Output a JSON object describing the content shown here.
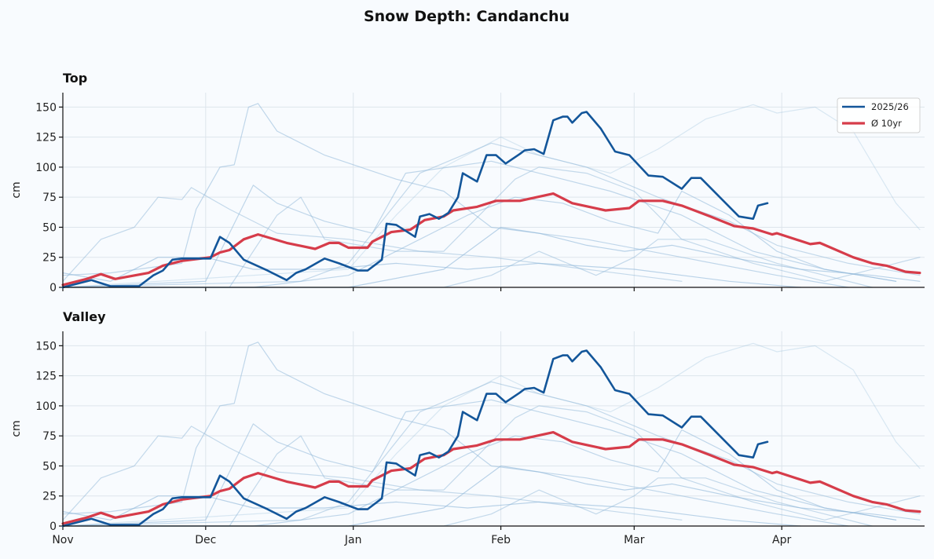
{
  "chart_data": {
    "type": "line",
    "title": "Snow Depth: Candanchu",
    "season_start": "2025-11-01",
    "xlim": [
      "11-01",
      "05-01"
    ],
    "ylim": [
      0,
      162
    ],
    "yticks": [
      0,
      25,
      50,
      75,
      100,
      125,
      150
    ],
    "xticks": [
      {
        "date": "11-01",
        "label": "Nov"
      },
      {
        "date": "12-01",
        "label": "Dec"
      },
      {
        "date": "01-01",
        "label": "Jan"
      },
      {
        "date": "02-01",
        "label": "Feb"
      },
      {
        "date": "03-01",
        "label": "Mar"
      },
      {
        "date": "04-01",
        "label": "Apr"
      }
    ],
    "grid": true,
    "legend_placement": "top-right",
    "panels": [
      {
        "title": "Top",
        "ylabel": "cm"
      },
      {
        "title": "Valley",
        "ylabel": "cm"
      }
    ],
    "series": [
      {
        "name": "2025/26",
        "color": "#13569a",
        "role": "current",
        "points": [
          [
            "11-01",
            0
          ],
          [
            "11-07",
            6
          ],
          [
            "11-11",
            1
          ],
          [
            "11-17",
            1
          ],
          [
            "11-20",
            10
          ],
          [
            "11-22",
            14
          ],
          [
            "11-24",
            23
          ],
          [
            "11-26",
            24
          ],
          [
            "12-02",
            24
          ],
          [
            "12-04",
            42
          ],
          [
            "12-06",
            37
          ],
          [
            "12-09",
            23
          ],
          [
            "12-14",
            14
          ],
          [
            "12-18",
            6
          ],
          [
            "12-20",
            12
          ],
          [
            "12-22",
            15
          ],
          [
            "12-26",
            24
          ],
          [
            "12-29",
            20
          ],
          [
            "12-31",
            17
          ],
          [
            "01-02",
            14
          ],
          [
            "01-04",
            14
          ],
          [
            "01-07",
            23
          ],
          [
            "01-08",
            53
          ],
          [
            "01-10",
            52
          ],
          [
            "01-14",
            42
          ],
          [
            "01-15",
            59
          ],
          [
            "01-17",
            61
          ],
          [
            "01-19",
            57
          ],
          [
            "01-21",
            62
          ],
          [
            "01-23",
            75
          ],
          [
            "01-24",
            95
          ],
          [
            "01-27",
            88
          ],
          [
            "01-29",
            110
          ],
          [
            "01-31",
            110
          ],
          [
            "02-02",
            103
          ],
          [
            "02-05",
            111
          ],
          [
            "02-06",
            114
          ],
          [
            "02-08",
            115
          ],
          [
            "02-10",
            111
          ],
          [
            "02-12",
            139
          ],
          [
            "02-14",
            142
          ],
          [
            "02-15",
            142
          ],
          [
            "02-16",
            137
          ],
          [
            "02-18",
            145
          ],
          [
            "02-19",
            146
          ],
          [
            "02-22",
            132
          ],
          [
            "02-25",
            113
          ],
          [
            "02-28",
            110
          ],
          [
            "03-04",
            93
          ],
          [
            "03-07",
            92
          ],
          [
            "03-11",
            82
          ],
          [
            "03-13",
            91
          ],
          [
            "03-15",
            91
          ],
          [
            "03-23",
            59
          ],
          [
            "03-26",
            57
          ],
          [
            "03-27",
            68
          ],
          [
            "03-29",
            70
          ]
        ]
      },
      {
        "name": "Ø 10yr",
        "color": "#d63c4a",
        "role": "average",
        "points": [
          [
            "11-01",
            2
          ],
          [
            "11-06",
            7
          ],
          [
            "11-09",
            11
          ],
          [
            "11-12",
            7
          ],
          [
            "11-19",
            12
          ],
          [
            "11-22",
            18
          ],
          [
            "11-26",
            22
          ],
          [
            "12-02",
            25
          ],
          [
            "12-04",
            29
          ],
          [
            "12-06",
            31
          ],
          [
            "12-09",
            40
          ],
          [
            "12-12",
            44
          ],
          [
            "12-18",
            37
          ],
          [
            "12-24",
            32
          ],
          [
            "12-27",
            37
          ],
          [
            "12-29",
            37
          ],
          [
            "12-31",
            33
          ],
          [
            "01-04",
            33
          ],
          [
            "01-05",
            38
          ],
          [
            "01-09",
            46
          ],
          [
            "01-13",
            48
          ],
          [
            "01-16",
            56
          ],
          [
            "01-20",
            59
          ],
          [
            "01-22",
            64
          ],
          [
            "01-27",
            67
          ],
          [
            "01-31",
            72
          ],
          [
            "02-05",
            72
          ],
          [
            "02-12",
            78
          ],
          [
            "02-16",
            70
          ],
          [
            "02-23",
            64
          ],
          [
            "02-28",
            66
          ],
          [
            "03-02",
            72
          ],
          [
            "03-07",
            72
          ],
          [
            "03-11",
            68
          ],
          [
            "03-17",
            59
          ],
          [
            "03-22",
            51
          ],
          [
            "03-26",
            49
          ],
          [
            "03-30",
            44
          ],
          [
            "03-31",
            45
          ],
          [
            "04-07",
            36
          ],
          [
            "04-09",
            37
          ],
          [
            "04-16",
            25
          ],
          [
            "04-20",
            20
          ],
          [
            "04-23",
            18
          ],
          [
            "04-27",
            13
          ],
          [
            "04-30",
            12
          ]
        ]
      },
      {
        "color": "#8fb8d8",
        "role": "history",
        "points": [
          [
            "11-01",
            10
          ],
          [
            "11-11",
            12
          ],
          [
            "11-26",
            20
          ],
          [
            "11-29",
            65
          ],
          [
            "12-04",
            100
          ],
          [
            "12-07",
            102
          ],
          [
            "12-10",
            150
          ],
          [
            "12-12",
            153
          ],
          [
            "12-16",
            130
          ],
          [
            "12-26",
            110
          ],
          [
            "01-10",
            90
          ],
          [
            "01-20",
            80
          ],
          [
            "01-30",
            50
          ],
          [
            "02-19",
            40
          ],
          [
            "03-11",
            25
          ],
          [
            "03-31",
            10
          ],
          [
            "04-15",
            0
          ]
        ]
      },
      {
        "color": "#8fb8d8",
        "role": "history",
        "points": [
          [
            "11-01",
            5
          ],
          [
            "11-09",
            40
          ],
          [
            "11-16",
            50
          ],
          [
            "11-21",
            75
          ],
          [
            "11-26",
            73
          ],
          [
            "11-28",
            83
          ],
          [
            "12-06",
            65
          ],
          [
            "12-16",
            45
          ],
          [
            "12-31",
            40
          ],
          [
            "01-15",
            30
          ],
          [
            "01-30",
            25
          ],
          [
            "02-19",
            15
          ],
          [
            "03-11",
            5
          ]
        ]
      },
      {
        "color": "#8fb8d8",
        "role": "history",
        "points": [
          [
            "11-01",
            0
          ],
          [
            "12-31",
            15
          ],
          [
            "01-10",
            60
          ],
          [
            "01-20",
            100
          ],
          [
            "02-01",
            125
          ],
          [
            "02-09",
            110
          ],
          [
            "02-24",
            95
          ],
          [
            "03-06",
            115
          ],
          [
            "03-16",
            140
          ],
          [
            "03-26",
            152
          ],
          [
            "03-31",
            145
          ],
          [
            "04-08",
            150
          ],
          [
            "04-16",
            130
          ],
          [
            "04-25",
            70
          ],
          [
            "04-30",
            48
          ]
        ]
      },
      {
        "color": "#8fb8d8",
        "role": "history",
        "points": [
          [
            "11-01",
            0
          ],
          [
            "12-01",
            5
          ],
          [
            "12-11",
            85
          ],
          [
            "12-16",
            70
          ],
          [
            "12-26",
            55
          ],
          [
            "01-05",
            45
          ],
          [
            "01-12",
            95
          ],
          [
            "01-30",
            105
          ],
          [
            "02-09",
            95
          ],
          [
            "02-24",
            80
          ],
          [
            "03-11",
            60
          ],
          [
            "03-26",
            30
          ],
          [
            "04-10",
            15
          ],
          [
            "04-25",
            5
          ]
        ]
      },
      {
        "color": "#8fb8d8",
        "role": "history",
        "points": [
          [
            "11-01",
            0
          ],
          [
            "12-21",
            5
          ],
          [
            "12-31",
            20
          ],
          [
            "01-15",
            95
          ],
          [
            "01-30",
            120
          ],
          [
            "02-04",
            115
          ],
          [
            "02-19",
            100
          ],
          [
            "03-06",
            75
          ],
          [
            "03-21",
            55
          ],
          [
            "03-31",
            35
          ],
          [
            "04-15",
            20
          ],
          [
            "04-30",
            10
          ]
        ]
      },
      {
        "color": "#8fb8d8",
        "role": "history",
        "points": [
          [
            "11-01",
            0
          ],
          [
            "12-11",
            0
          ],
          [
            "12-31",
            10
          ],
          [
            "01-25",
            60
          ],
          [
            "02-04",
            75
          ],
          [
            "02-14",
            70
          ],
          [
            "02-24",
            55
          ],
          [
            "03-06",
            45
          ],
          [
            "03-11",
            80
          ],
          [
            "03-21",
            60
          ],
          [
            "03-31",
            30
          ],
          [
            "04-10",
            15
          ],
          [
            "04-25",
            5
          ]
        ]
      },
      {
        "color": "#8fb8d8",
        "role": "history",
        "points": [
          [
            "11-01",
            0
          ],
          [
            "12-31",
            0
          ],
          [
            "01-20",
            15
          ],
          [
            "02-01",
            50
          ],
          [
            "02-09",
            45
          ],
          [
            "02-19",
            35
          ],
          [
            "02-27",
            30
          ],
          [
            "03-09",
            35
          ],
          [
            "03-21",
            25
          ],
          [
            "04-05",
            15
          ],
          [
            "04-20",
            10
          ],
          [
            "04-30",
            5
          ]
        ]
      },
      {
        "color": "#8fb8d8",
        "role": "history",
        "points": [
          [
            "11-01",
            0
          ],
          [
            "01-20",
            0
          ],
          [
            "01-30",
            10
          ],
          [
            "02-09",
            30
          ],
          [
            "02-21",
            10
          ],
          [
            "03-01",
            25
          ],
          [
            "03-06",
            40
          ],
          [
            "03-16",
            40
          ],
          [
            "03-31",
            20
          ],
          [
            "04-10",
            10
          ],
          [
            "04-20",
            0
          ]
        ]
      },
      {
        "color": "#8fb8d8",
        "role": "history",
        "points": [
          [
            "11-01",
            12
          ],
          [
            "11-11",
            5
          ],
          [
            "11-21",
            25
          ],
          [
            "12-01",
            25
          ],
          [
            "12-11",
            15
          ],
          [
            "12-26",
            15
          ],
          [
            "01-10",
            20
          ],
          [
            "01-25",
            15
          ],
          [
            "02-09",
            20
          ],
          [
            "03-01",
            15
          ],
          [
            "03-21",
            5
          ],
          [
            "04-05",
            0
          ]
        ]
      },
      {
        "color": "#8fb8d8",
        "role": "history",
        "points": [
          [
            "11-01",
            0
          ],
          [
            "12-06",
            0
          ],
          [
            "12-16",
            60
          ],
          [
            "12-21",
            75
          ],
          [
            "12-26",
            40
          ],
          [
            "01-10",
            30
          ],
          [
            "01-20",
            30
          ],
          [
            "02-04",
            90
          ],
          [
            "02-09",
            100
          ],
          [
            "02-19",
            95
          ],
          [
            "03-01",
            80
          ],
          [
            "03-11",
            40
          ],
          [
            "03-26",
            20
          ],
          [
            "04-10",
            5
          ],
          [
            "04-25",
            20
          ],
          [
            "04-30",
            25
          ]
        ]
      }
    ]
  }
}
